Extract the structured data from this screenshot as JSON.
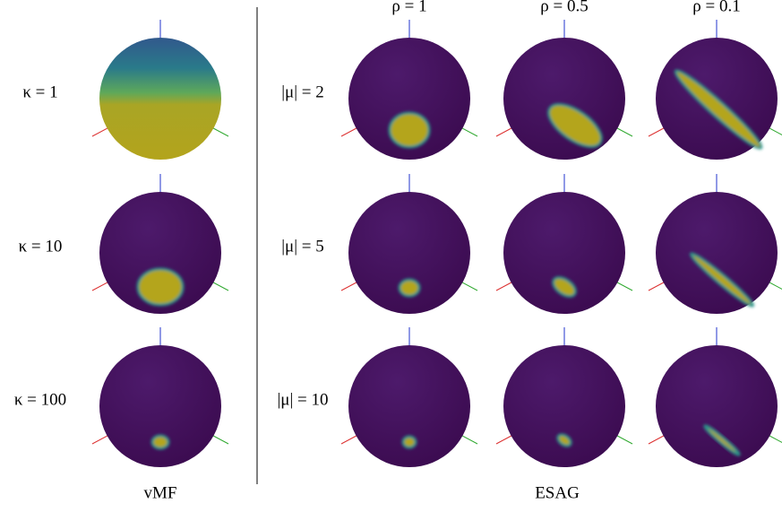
{
  "vmf": {
    "row_labels": [
      "κ = 1",
      "κ = 10",
      "κ = 100"
    ],
    "caption": "vMF"
  },
  "esag": {
    "column_labels": [
      "ρ = 1",
      "ρ = 0.5",
      "ρ = 0.1"
    ],
    "row_labels": [
      "|μ| = 2",
      "|μ| = 5",
      "|μ| = 10"
    ],
    "caption": "ESAG"
  }
}
